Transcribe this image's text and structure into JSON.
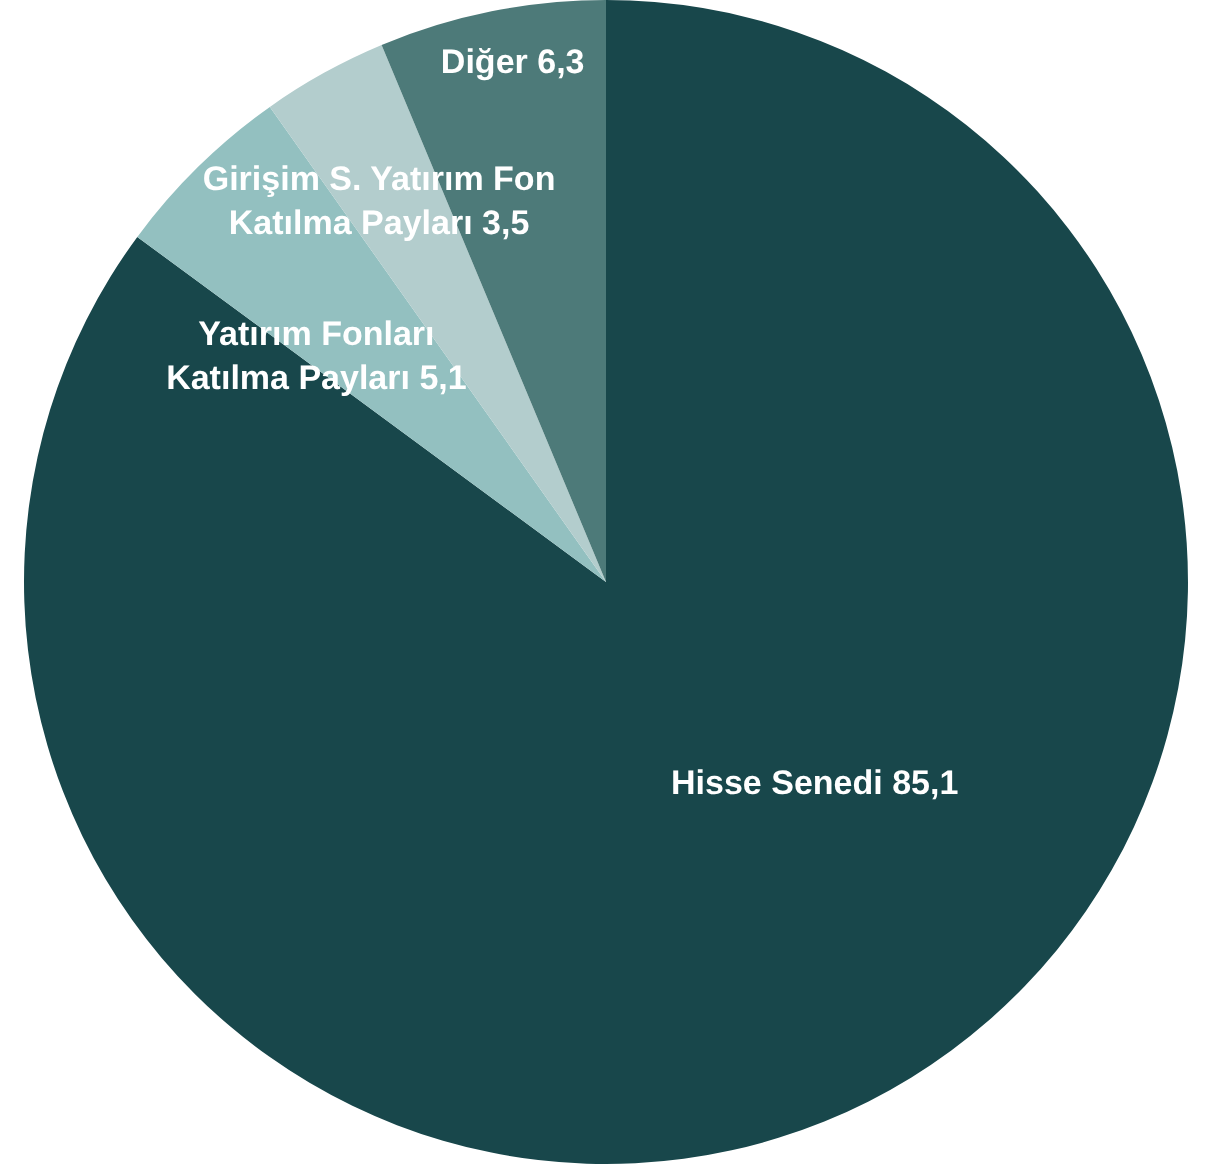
{
  "chart_data": {
    "type": "pie",
    "categories": [
      "Hisse Senedi",
      "Yatırım Fonları Katılma Payları",
      "Girişim S. Yatırım Fon Katılma Payları",
      "Diğer"
    ],
    "values": [
      85.1,
      5.1,
      3.5,
      6.3
    ],
    "colors": [
      "#18474b",
      "#93c0c0",
      "#b3cdcd",
      "#4d7a79"
    ],
    "value_labels": [
      "85,1",
      "5,1",
      "3,5",
      "6,3"
    ]
  }
}
